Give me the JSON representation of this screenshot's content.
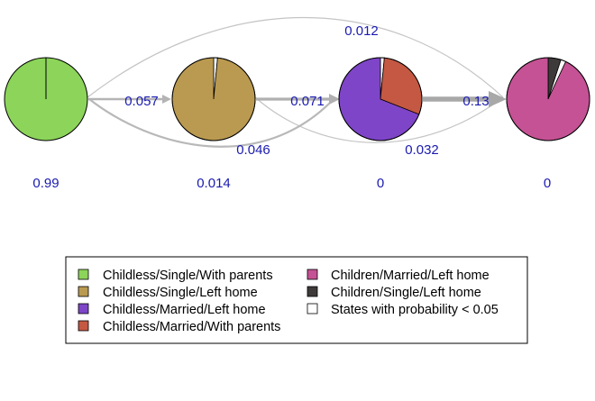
{
  "states": [
    {
      "name": "Childless/Single/With parents",
      "color": "#8CD45A"
    },
    {
      "name": "Childless/Single/Left home",
      "color": "#BA9A50"
    },
    {
      "name": "Childless/Married/Left home",
      "color": "#7E45C8"
    },
    {
      "name": "Childless/Married/With parents",
      "color": "#C45842"
    },
    {
      "name": "Children/Married/Left home",
      "color": "#C45294"
    },
    {
      "name": "Children/Single/Left home",
      "color": "#3F3A3A"
    },
    {
      "name": "States with probability < 0.05",
      "color": "#FFFFFF"
    }
  ],
  "nodes": [
    {
      "id": "node-1",
      "initial_probability": "0.99",
      "composition": [
        {
          "state": "Childless/Single/With parents",
          "share": 1.0
        }
      ]
    },
    {
      "id": "node-2",
      "initial_probability": "0.014",
      "composition": [
        {
          "state": "Childless/Single/Left home",
          "share": 0.985
        },
        {
          "state": "States with probability < 0.05",
          "share": 0.015
        }
      ]
    },
    {
      "id": "node-3",
      "initial_probability": "0",
      "composition": [
        {
          "state": "Childless/Married/Left home",
          "share": 0.69
        },
        {
          "state": "Childless/Married/With parents",
          "share": 0.295
        },
        {
          "state": "States with probability < 0.05",
          "share": 0.015
        }
      ]
    },
    {
      "id": "node-4",
      "initial_probability": "0",
      "composition": [
        {
          "state": "Children/Married/Left home",
          "share": 0.93
        },
        {
          "state": "States with probability < 0.05",
          "share": 0.02
        },
        {
          "state": "Children/Single/Left home",
          "share": 0.05
        }
      ]
    }
  ],
  "transitions": [
    {
      "from": "node-1",
      "to": "node-2",
      "label": "0.057"
    },
    {
      "from": "node-1",
      "to": "node-3",
      "label": "0.046"
    },
    {
      "from": "node-1",
      "to": "node-4",
      "label": "0.012"
    },
    {
      "from": "node-2",
      "to": "node-3",
      "label": "0.071"
    },
    {
      "from": "node-2",
      "to": "node-4",
      "label": "0.032"
    },
    {
      "from": "node-3",
      "to": "node-4",
      "label": "0.13"
    }
  ],
  "legend": {
    "left_column": [
      "Childless/Single/With parents",
      "Childless/Single/Left home",
      "Childless/Married/Left home",
      "Childless/Married/With parents"
    ],
    "right_column": [
      "Children/Married/Left home",
      "Children/Single/Left home",
      "States with probability < 0.05"
    ]
  }
}
